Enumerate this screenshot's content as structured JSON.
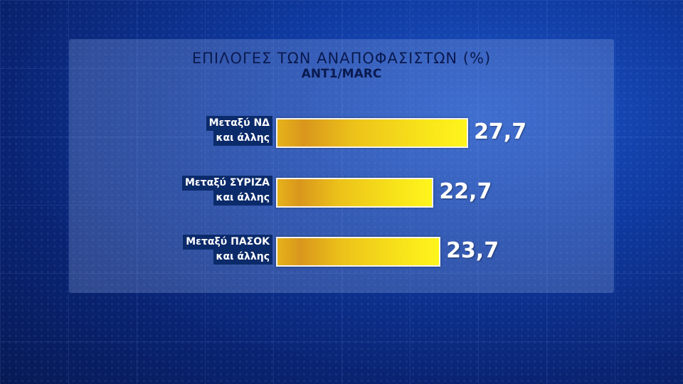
{
  "chart_data": {
    "type": "bar",
    "orientation": "horizontal",
    "title": "ΕΠΙΛΟΓΕΣ ΤΩΝ ΑΝΑΠΟΦΑΣΙΣΤΩΝ (%)",
    "subtitle": "ANT1/MARC",
    "categories": [
      [
        "Μεταξύ ΝΔ",
        "και άλλης"
      ],
      [
        "Μεταξύ ΣΥΡΙΖΑ",
        "και άλλης"
      ],
      [
        "Μεταξύ ΠΑΣΟΚ",
        "και άλλης"
      ]
    ],
    "values": [
      27.7,
      22.7,
      23.7
    ],
    "value_labels": [
      "27,7",
      "22,7",
      "23,7"
    ],
    "bar_color": "#f2d21a",
    "grid": false
  }
}
